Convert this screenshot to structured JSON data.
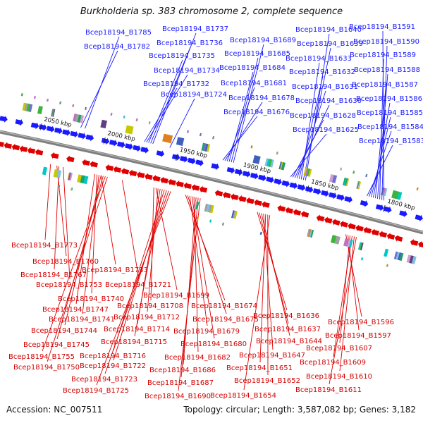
{
  "title": "Burkholderia sp. 383 chromosome 2, complete sequence",
  "accession": "Accession: NC_007511",
  "summary": "Topology: circular; Length: 3,587,082 bp; Genes: 3,182",
  "colors": {
    "top_strand": "#1a1aff",
    "bottom_strand": "#e00000",
    "backbone": "#808080"
  },
  "ticks": [
    "2050 kbp",
    "2000 kbp",
    "1950 kbp",
    "1900 kbp",
    "1850 kbp",
    "1800 kbp"
  ],
  "top_labels": [
    "Bcep18194_B1785",
    "Bcep18194_B1782",
    "Bcep18194_B1737",
    "Bcep18194_B1736",
    "Bcep18194_B1735",
    "Bcep18194_B1734",
    "Bcep18194_B1732",
    "Bcep18194_B1724",
    "Bcep18194_B1689",
    "Bcep18194_B1685",
    "Bcep18194_B1684",
    "Bcep18194_B1681",
    "Bcep18194_B1678",
    "Bcep18194_B1676",
    "Bcep18194_B1640",
    "Bcep18194_B1639",
    "Bcep18194_B1633",
    "Bcep18194_B1632",
    "Bcep18194_B1631",
    "Bcep18194_B1630",
    "Bcep18194_B1628",
    "Bcep18194_B1625",
    "Bcep18194_B1591",
    "Bcep18194_B1590",
    "Bcep18194_B1589",
    "Bcep18194_B1588",
    "Bcep18194_B1587",
    "Bcep18194_B1586",
    "Bcep18194_B1585",
    "Bcep18194_B1584",
    "Bcep18194_B1583"
  ],
  "bottom_labels": [
    "Bcep18194_B1773",
    "Bcep18194_B1760",
    "Bcep18194_B1767",
    "Bcep18194_B1753",
    "Bcep18194_B1733",
    "Bcep18194_B1721",
    "Bcep18194_B1740",
    "Bcep18194_B1747",
    "Bcep18194_B1741",
    "Bcep18194_B1744",
    "Bcep18194_B1745",
    "Bcep18194_B1755",
    "Bcep18194_B1750",
    "Bcep18194_B1699",
    "Bcep18194_B1708",
    "Bcep18194_B1674",
    "Bcep18194_B1712",
    "Bcep18194_B1714",
    "Bcep18194_B1715",
    "Bcep18194_B1716",
    "Bcep18194_B1722",
    "Bcep18194_B1723",
    "Bcep18194_B1725",
    "Bcep18194_B1675",
    "Bcep18194_B1679",
    "Bcep18194_B1680",
    "Bcep18194_B1682",
    "Bcep18194_B1686",
    "Bcep18194_B1687",
    "Bcep18194_B1690",
    "Bcep18194_B1636",
    "Bcep18194_B1637",
    "Bcep18194_B1644",
    "Bcep18194_B1647",
    "Bcep18194_B1651",
    "Bcep18194_B1652",
    "Bcep18194_B1654",
    "Bcep18194_B1596",
    "Bcep18194_B1597",
    "Bcep18194_B1607",
    "Bcep18194_B1609",
    "Bcep18194_B1610",
    "Bcep18194_B1611"
  ]
}
